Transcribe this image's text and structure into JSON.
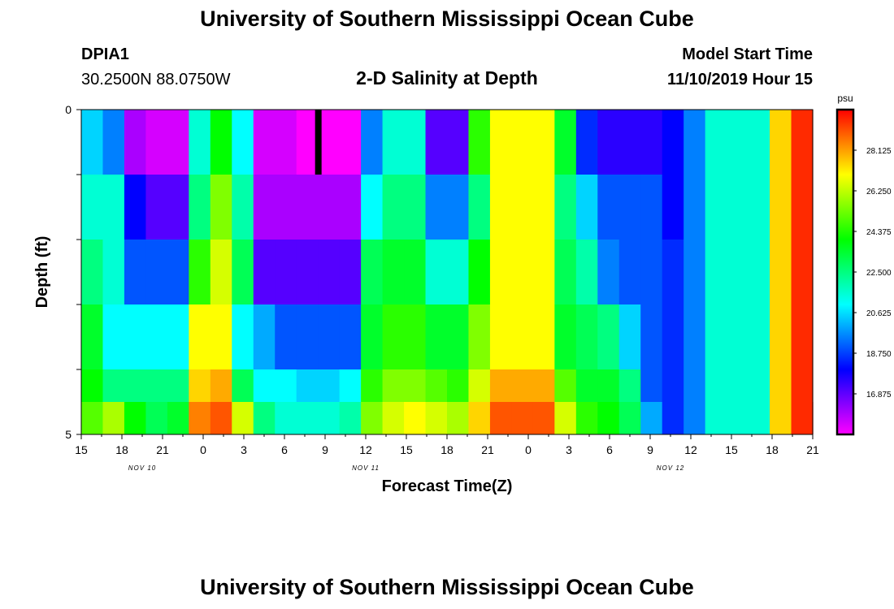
{
  "header": {
    "title": "University of Southern Mississippi Ocean Cube",
    "station_id": "DPIA1",
    "coordinates": "30.2500N 88.0750W",
    "chart_title": "2-D Salinity at Depth",
    "model_label": "Model Start Time",
    "model_time": "11/10/2019 Hour 15"
  },
  "footer": {
    "title": "University of Southern Mississippi Ocean Cube"
  },
  "colors": {
    "background": "#ffffff",
    "axis": "#000000",
    "gap_marker": "#000000"
  },
  "chart_data": {
    "type": "heatmap",
    "title": "2-D Salinity at Depth",
    "xlabel": "Forecast Time(Z)",
    "ylabel": "Depth (ft)",
    "units": "psu",
    "ylim": [
      0,
      5
    ],
    "y_ticks": [
      "0",
      "5"
    ],
    "xlim_hours": [
      0,
      54
    ],
    "x_ticks": [
      "15",
      "18",
      "21",
      "0",
      "3",
      "6",
      "9",
      "12",
      "15",
      "18",
      "21",
      "0",
      "3",
      "6",
      "9",
      "12",
      "15",
      "18",
      "21"
    ],
    "date_labels": [
      {
        "text": "NOV 10",
        "at_hour": 4.5
      },
      {
        "text": "NOV 11",
        "at_hour": 21
      },
      {
        "text": "NOV 12",
        "at_hour": 43.5
      }
    ],
    "colorbar": {
      "min": 15.0,
      "max": 30.0,
      "ticks": [
        "28.125",
        "26.250",
        "24.375",
        "22.500",
        "20.625",
        "18.750",
        "16.875"
      ],
      "tick_values": [
        28.125,
        26.25,
        24.375,
        22.5,
        20.625,
        18.75,
        16.875
      ]
    },
    "missing_data": {
      "hour": 17.5,
      "layer": 0
    },
    "layers": [
      {
        "depth_range": [
          0,
          1
        ],
        "values": [
          20.5,
          19.5,
          16,
          15.5,
          15.5,
          21.5,
          24,
          21,
          15.5,
          15.5,
          15,
          15,
          15,
          19.5,
          21.5,
          21.5,
          17,
          17,
          24.5,
          27,
          27,
          27,
          23.5,
          18.5,
          17.5,
          17.5,
          17.5,
          18,
          19.5,
          21.5,
          21.5,
          21.5,
          27.5,
          29.5
        ]
      },
      {
        "depth_range": [
          1,
          2
        ],
        "values": [
          21.5,
          21.5,
          18,
          17,
          17,
          22.5,
          25.5,
          22,
          16,
          16,
          16,
          16,
          16,
          21,
          22.5,
          22.5,
          19.5,
          19.5,
          22.5,
          27,
          27,
          27,
          22.5,
          20.5,
          19,
          19,
          19,
          18,
          19.5,
          21.5,
          21.5,
          21.5,
          27.5,
          29.5
        ]
      },
      {
        "depth_range": [
          2,
          3
        ],
        "values": [
          22.5,
          21.5,
          19,
          19,
          19,
          24.5,
          26.5,
          23,
          17,
          17,
          17,
          17,
          17,
          23,
          23.5,
          23.5,
          21.5,
          21.5,
          24,
          27,
          27,
          27,
          23,
          22,
          19.5,
          19,
          19,
          18.5,
          19.5,
          21.5,
          21.5,
          21.5,
          27.5,
          29.5
        ]
      },
      {
        "depth_range": [
          3,
          4
        ],
        "values": [
          23.5,
          21,
          21,
          21,
          21,
          27,
          27,
          21,
          20,
          19,
          19,
          19,
          19,
          23.5,
          24.5,
          24.5,
          23.5,
          23.5,
          25.5,
          27,
          27,
          27,
          23.5,
          23,
          22.5,
          20.5,
          19,
          18.5,
          19.5,
          21.5,
          21.5,
          21.5,
          27.5,
          29.5
        ]
      },
      {
        "depth_range": [
          4,
          5
        ],
        "values": [
          24,
          22.5,
          22.5,
          22.5,
          22.5,
          27.5,
          28,
          23,
          21,
          21,
          20.5,
          20.5,
          21,
          24.5,
          25.5,
          25.5,
          25,
          24.5,
          26.5,
          28,
          28,
          28,
          25,
          23.5,
          23.5,
          22.5,
          19,
          18.5,
          19.5,
          21.5,
          21.5,
          21.5,
          27.5,
          29.5
        ]
      },
      {
        "depth_range": [
          4.5,
          5
        ],
        "values": [
          25,
          26,
          24,
          23,
          23.5,
          28.5,
          29,
          26.5,
          22.5,
          21.5,
          21.5,
          21.5,
          22,
          25.5,
          26.5,
          27,
          26.5,
          26,
          27.5,
          29,
          29,
          29,
          26.5,
          24.5,
          24,
          23,
          20,
          18.5,
          19.5,
          21.5,
          21.5,
          21.5,
          27.5,
          29.5
        ]
      }
    ]
  }
}
